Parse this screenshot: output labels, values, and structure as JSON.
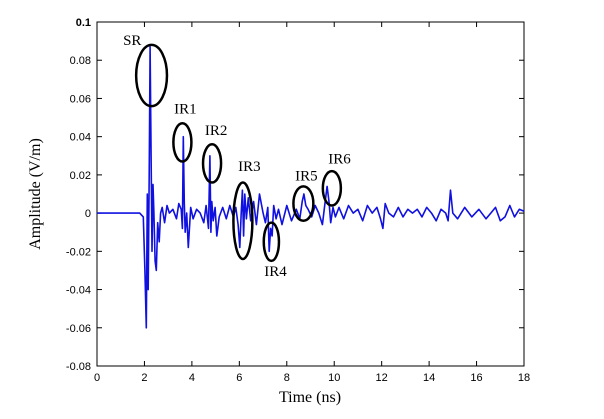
{
  "chart_data": {
    "type": "line",
    "xlabel": "Time (ns)",
    "ylabel": "Amplitude (V/m)",
    "xlim": [
      0,
      18
    ],
    "ylim": [
      -0.08,
      0.1
    ],
    "xticks": [
      0,
      2,
      4,
      6,
      8,
      10,
      12,
      14,
      16,
      18
    ],
    "yticks": [
      -0.08,
      -0.06,
      -0.04,
      -0.02,
      0,
      0.02,
      0.04,
      0.06,
      0.08,
      0.1
    ],
    "ytick_labels": [
      "-0.08",
      "-0.06",
      "-0.04",
      "-0.02",
      "0",
      "0.02",
      "0.04",
      "0.06",
      "0.08",
      "0.1"
    ],
    "grid": false,
    "line_color": "#1010e0",
    "series": [
      {
        "x": [
          0,
          1.5,
          1.8,
          1.95,
          2.02,
          2.08,
          2.12,
          2.16,
          2.2,
          2.24,
          2.28,
          2.32,
          2.36,
          2.4,
          2.45,
          2.5,
          2.56,
          2.62,
          2.68,
          2.75,
          2.85,
          2.95,
          3.05,
          3.2,
          3.35,
          3.45,
          3.55,
          3.6,
          3.64,
          3.68,
          3.72,
          3.78,
          3.85,
          3.95,
          4.05,
          4.2,
          4.35,
          4.5,
          4.6,
          4.7,
          4.76,
          4.8,
          4.84,
          4.9,
          4.98,
          5.05,
          5.15,
          5.3,
          5.45,
          5.6,
          5.75,
          5.85,
          5.95,
          6.02,
          6.08,
          6.13,
          6.18,
          6.23,
          6.3,
          6.38,
          6.48,
          6.6,
          6.72,
          6.85,
          7.0,
          7.1,
          7.2,
          7.26,
          7.32,
          7.38,
          7.45,
          7.55,
          7.65,
          7.8,
          8.0,
          8.2,
          8.4,
          8.55,
          8.65,
          8.72,
          8.8,
          8.9,
          9.05,
          9.2,
          9.35,
          9.5,
          9.6,
          9.7,
          9.78,
          9.85,
          9.95,
          10.05,
          10.2,
          10.4,
          10.6,
          10.8,
          11.0,
          11.2,
          11.4,
          11.6,
          11.8,
          11.95,
          12.05,
          12.15,
          12.3,
          12.5,
          12.7,
          12.9,
          13.1,
          13.3,
          13.5,
          13.7,
          13.9,
          14.1,
          14.3,
          14.5,
          14.7,
          14.8,
          14.9,
          15.0,
          15.2,
          15.5,
          15.8,
          16.1,
          16.4,
          16.6,
          16.8,
          17.0,
          17.2,
          17.4,
          17.6,
          17.8,
          18.0
        ],
        "values": [
          0,
          0,
          0,
          -0.002,
          -0.03,
          -0.06,
          0.01,
          -0.04,
          0.02,
          0.087,
          0.03,
          -0.02,
          0.015,
          0.0,
          -0.025,
          -0.03,
          -0.005,
          -0.015,
          0.0,
          0.003,
          -0.005,
          0.004,
          0.0,
          0.002,
          -0.003,
          0.005,
          0.002,
          -0.008,
          0.04,
          0.005,
          -0.01,
          0.0,
          -0.018,
          0.003,
          -0.003,
          0.002,
          0.0,
          -0.005,
          0.004,
          -0.008,
          0.03,
          -0.01,
          0.006,
          -0.004,
          0.003,
          -0.012,
          -0.002,
          0.003,
          -0.003,
          0.004,
          -0.002,
          0.003,
          -0.006,
          -0.018,
          0.0,
          0.012,
          -0.012,
          0.01,
          -0.003,
          0.008,
          -0.004,
          0.006,
          -0.006,
          0.01,
          0.0,
          -0.005,
          0.003,
          -0.02,
          -0.008,
          -0.012,
          0.004,
          -0.003,
          0.002,
          -0.006,
          0.004,
          -0.004,
          0.002,
          -0.003,
          0.006,
          0.01,
          0.004,
          0.002,
          -0.002,
          0.004,
          0.0,
          -0.006,
          0.004,
          0.014,
          0.006,
          -0.005,
          0.003,
          -0.002,
          0.003,
          -0.003,
          0.004,
          0.0,
          0.002,
          -0.004,
          0.004,
          0.0,
          0.003,
          -0.003,
          -0.008,
          0.005,
          0.0,
          -0.002,
          0.003,
          -0.002,
          0.002,
          0.0,
          0.002,
          -0.002,
          0.003,
          0.0,
          -0.004,
          0.002,
          0.0,
          -0.004,
          0.012,
          0.0,
          -0.003,
          0.003,
          -0.002,
          0.002,
          -0.003,
          0.0,
          0.003,
          -0.004,
          -0.002,
          0.004,
          -0.002,
          0.002,
          0.001
        ]
      }
    ],
    "annotations": [
      {
        "label": "SR",
        "x": 2.3,
        "y": 0.072,
        "rx": 0.65,
        "ry": 0.016,
        "label_x": 1.1,
        "label_y": 0.088
      },
      {
        "label": "IR1",
        "x": 3.6,
        "y": 0.037,
        "rx": 0.38,
        "ry": 0.01,
        "label_x": 3.25,
        "label_y": 0.052
      },
      {
        "label": "IR2",
        "x": 4.85,
        "y": 0.026,
        "rx": 0.38,
        "ry": 0.01,
        "label_x": 4.55,
        "label_y": 0.041
      },
      {
        "label": "IR3",
        "x": 6.15,
        "y": -0.004,
        "rx": 0.4,
        "ry": 0.02,
        "label_x": 5.95,
        "label_y": 0.022
      },
      {
        "label": "IR4",
        "x": 7.35,
        "y": -0.015,
        "rx": 0.32,
        "ry": 0.01,
        "label_x": 7.05,
        "label_y": -0.033
      },
      {
        "label": "IR5",
        "x": 8.7,
        "y": 0.005,
        "rx": 0.42,
        "ry": 0.009,
        "label_x": 8.35,
        "label_y": 0.017
      },
      {
        "label": "IR6",
        "x": 9.9,
        "y": 0.013,
        "rx": 0.38,
        "ry": 0.009,
        "label_x": 9.75,
        "label_y": 0.026
      }
    ]
  }
}
